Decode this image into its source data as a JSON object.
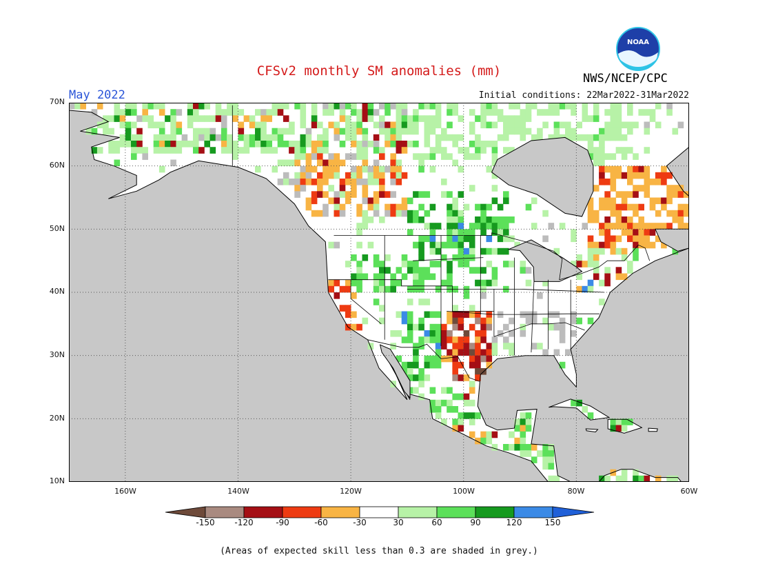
{
  "header": {
    "title": "CFSv2 monthly SM anomalies (mm)",
    "valid_month": "May 2022",
    "initial_conditions": "Initial conditions: 22Mar2022-31Mar2022",
    "organization": "NWS/NCEP/CPC",
    "logo_text": "NOAA"
  },
  "map": {
    "lon_range": [
      -170,
      -60
    ],
    "lat_range": [
      10,
      70
    ],
    "lat_ticks": [
      "10N",
      "20N",
      "30N",
      "40N",
      "50N",
      "60N",
      "70N"
    ],
    "lon_ticks": [
      "160W",
      "140W",
      "120W",
      "100W",
      "80W",
      "60W"
    ],
    "ocean_color": "#c8c8c8",
    "land_color": "#ffffff",
    "gridlines": true
  },
  "colorbar": {
    "labels": [
      "-150",
      "-120",
      "-90",
      "-60",
      "-30",
      "30",
      "60",
      "90",
      "120",
      "150"
    ],
    "colors": [
      "#6e4a3a",
      "#a98a80",
      "#a50f15",
      "#ee3b12",
      "#f8b444",
      "#ffffff",
      "#b7f2a7",
      "#5ce05a",
      "#169a1f",
      "#3b8ae6",
      "#2060d8"
    ]
  },
  "footnote": "(Areas of expected skill less than 0.3 are shaded in grey.)"
}
